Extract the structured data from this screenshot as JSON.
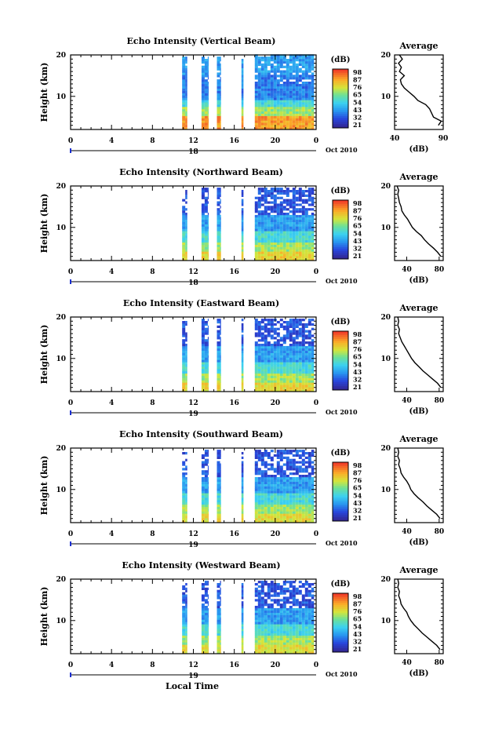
{
  "x_axis_label": "Local Time",
  "date_label": "Oct 2010",
  "chart_data": [
    {
      "type": "heatmap",
      "title": "Echo Intensity (Vertical Beam)",
      "ylabel": "Height (km)",
      "xlim": [
        0,
        24
      ],
      "ylim": [
        2,
        20
      ],
      "x_ticks": [
        "0",
        "4",
        "8",
        "12",
        "16",
        "20",
        "0"
      ],
      "y_ticks": [
        "10",
        "20"
      ],
      "day_label": "18",
      "colorbar_label": "(dB)",
      "colorbar_ticks": [
        "98",
        "87",
        "76",
        "65",
        "54",
        "43",
        "32",
        "21"
      ],
      "data_columns_hours": [
        [
          10.9,
          11.4
        ],
        [
          12.8,
          13.5
        ],
        [
          14.3,
          14.7
        ],
        [
          16.7,
          16.9
        ],
        [
          18.0,
          23.8
        ]
      ],
      "average": {
        "title": "Average",
        "xlabel": "(dB)",
        "x_ticks": [
          "40",
          "90"
        ],
        "xlim": [
          40,
          90
        ],
        "y_ticks": [
          "10",
          "20"
        ],
        "profile": [
          [
            85,
            3
          ],
          [
            88,
            4
          ],
          [
            80,
            5
          ],
          [
            76,
            7
          ],
          [
            72,
            8
          ],
          [
            64,
            9
          ],
          [
            60,
            10
          ],
          [
            55,
            11
          ],
          [
            50,
            12
          ],
          [
            47,
            13
          ],
          [
            46,
            14
          ],
          [
            50,
            15
          ],
          [
            45,
            16
          ],
          [
            47,
            17
          ],
          [
            44,
            18
          ],
          [
            48,
            19
          ],
          [
            45,
            20
          ]
        ]
      }
    },
    {
      "type": "heatmap",
      "title": "Echo Intensity (Northward Beam)",
      "ylabel": "Height (km)",
      "xlim": [
        0,
        24
      ],
      "ylim": [
        2,
        20
      ],
      "x_ticks": [
        "0",
        "4",
        "8",
        "12",
        "16",
        "20",
        "0"
      ],
      "y_ticks": [
        "10",
        "20"
      ],
      "day_label": "18",
      "colorbar_label": "(dB)",
      "colorbar_ticks": [
        "98",
        "87",
        "76",
        "65",
        "54",
        "43",
        "32",
        "21"
      ],
      "data_columns_hours": [
        [
          10.9,
          11.4
        ],
        [
          12.8,
          13.5
        ],
        [
          14.3,
          14.7
        ],
        [
          16.7,
          16.9
        ],
        [
          18.0,
          23.8
        ]
      ],
      "average": {
        "title": "Average",
        "xlabel": "(dB)",
        "x_ticks": [
          "40",
          "80"
        ],
        "xlim": [
          25,
          85
        ],
        "y_ticks": [
          "10",
          "20"
        ],
        "profile": [
          [
            82,
            3
          ],
          [
            78,
            4
          ],
          [
            73,
            5
          ],
          [
            67,
            6
          ],
          [
            62,
            7
          ],
          [
            58,
            8
          ],
          [
            52,
            9
          ],
          [
            47,
            10
          ],
          [
            44,
            11
          ],
          [
            41,
            12
          ],
          [
            37,
            13
          ],
          [
            34,
            14
          ],
          [
            33,
            15
          ],
          [
            31,
            16
          ],
          [
            30,
            17
          ],
          [
            29,
            18
          ],
          [
            30,
            19
          ],
          [
            28,
            20
          ]
        ]
      }
    },
    {
      "type": "heatmap",
      "title": "Echo Intensity (Eastward Beam)",
      "ylabel": "Height (km)",
      "xlim": [
        0,
        24
      ],
      "ylim": [
        2,
        20
      ],
      "x_ticks": [
        "0",
        "4",
        "8",
        "12",
        "16",
        "20",
        "0"
      ],
      "y_ticks": [
        "10",
        "20"
      ],
      "day_label": "19",
      "colorbar_label": "(dB)",
      "colorbar_ticks": [
        "98",
        "87",
        "76",
        "65",
        "54",
        "43",
        "32",
        "21"
      ],
      "data_columns_hours": [
        [
          10.9,
          11.4
        ],
        [
          12.8,
          13.5
        ],
        [
          14.3,
          14.7
        ],
        [
          16.7,
          16.9
        ],
        [
          18.0,
          23.8
        ]
      ],
      "average": {
        "title": "Average",
        "xlabel": "(dB)",
        "x_ticks": [
          "40",
          "80"
        ],
        "xlim": [
          25,
          85
        ],
        "y_ticks": [
          "10",
          "20"
        ],
        "profile": [
          [
            82,
            3
          ],
          [
            78,
            4
          ],
          [
            72,
            5
          ],
          [
            66,
            6
          ],
          [
            60,
            7
          ],
          [
            55,
            8
          ],
          [
            50,
            9
          ],
          [
            46,
            10
          ],
          [
            43,
            11
          ],
          [
            40,
            12
          ],
          [
            37,
            13
          ],
          [
            34,
            14
          ],
          [
            32,
            15
          ],
          [
            30,
            16
          ],
          [
            31,
            17
          ],
          [
            29,
            18
          ],
          [
            30,
            19
          ],
          [
            29,
            20
          ]
        ]
      }
    },
    {
      "type": "heatmap",
      "title": "Echo Intensity (Southward Beam)",
      "ylabel": "Height (km)",
      "xlim": [
        0,
        24
      ],
      "ylim": [
        2,
        20
      ],
      "x_ticks": [
        "0",
        "4",
        "8",
        "12",
        "16",
        "20",
        "0"
      ],
      "y_ticks": [
        "10",
        "20"
      ],
      "day_label": "19",
      "colorbar_label": "(dB)",
      "colorbar_ticks": [
        "98",
        "87",
        "76",
        "65",
        "54",
        "43",
        "32",
        "21"
      ],
      "data_columns_hours": [
        [
          10.9,
          11.4
        ],
        [
          12.8,
          13.5
        ],
        [
          14.3,
          14.7
        ],
        [
          16.7,
          16.9
        ],
        [
          18.0,
          23.8
        ]
      ],
      "average": {
        "title": "Average",
        "xlabel": "(dB)",
        "x_ticks": [
          "40",
          "80"
        ],
        "xlim": [
          25,
          85
        ],
        "y_ticks": [
          "10",
          "20"
        ],
        "profile": [
          [
            81,
            3
          ],
          [
            77,
            4
          ],
          [
            71,
            5
          ],
          [
            65,
            6
          ],
          [
            60,
            7
          ],
          [
            54,
            8
          ],
          [
            49,
            9
          ],
          [
            45,
            10
          ],
          [
            43,
            11
          ],
          [
            40,
            12
          ],
          [
            36,
            13
          ],
          [
            33,
            14
          ],
          [
            32,
            15
          ],
          [
            30,
            16
          ],
          [
            31,
            17
          ],
          [
            29,
            18
          ],
          [
            30,
            19
          ],
          [
            29,
            20
          ]
        ]
      }
    },
    {
      "type": "heatmap",
      "title": "Echo Intensity (Westward Beam)",
      "ylabel": "Height (km)",
      "xlim": [
        0,
        24
      ],
      "ylim": [
        2,
        20
      ],
      "x_ticks": [
        "0",
        "4",
        "8",
        "12",
        "16",
        "20",
        "0"
      ],
      "y_ticks": [
        "10",
        "20"
      ],
      "day_label": "19",
      "colorbar_label": "(dB)",
      "colorbar_ticks": [
        "98",
        "87",
        "76",
        "65",
        "54",
        "43",
        "32",
        "21"
      ],
      "data_columns_hours": [
        [
          10.9,
          11.4
        ],
        [
          12.8,
          13.5
        ],
        [
          14.3,
          14.7
        ],
        [
          16.7,
          16.9
        ],
        [
          18.0,
          23.8
        ]
      ],
      "average": {
        "title": "Average",
        "xlabel": "(dB)",
        "x_ticks": [
          "40",
          "80"
        ],
        "xlim": [
          25,
          85
        ],
        "y_ticks": [
          "10",
          "20"
        ],
        "profile": [
          [
            81,
            3
          ],
          [
            77,
            4
          ],
          [
            71,
            5
          ],
          [
            65,
            6
          ],
          [
            59,
            7
          ],
          [
            54,
            8
          ],
          [
            49,
            9
          ],
          [
            45,
            10
          ],
          [
            42,
            11
          ],
          [
            40,
            12
          ],
          [
            36,
            13
          ],
          [
            33,
            14
          ],
          [
            32,
            15
          ],
          [
            30,
            16
          ],
          [
            31,
            17
          ],
          [
            29,
            18
          ],
          [
            30,
            19
          ],
          [
            29,
            20
          ]
        ]
      }
    }
  ]
}
